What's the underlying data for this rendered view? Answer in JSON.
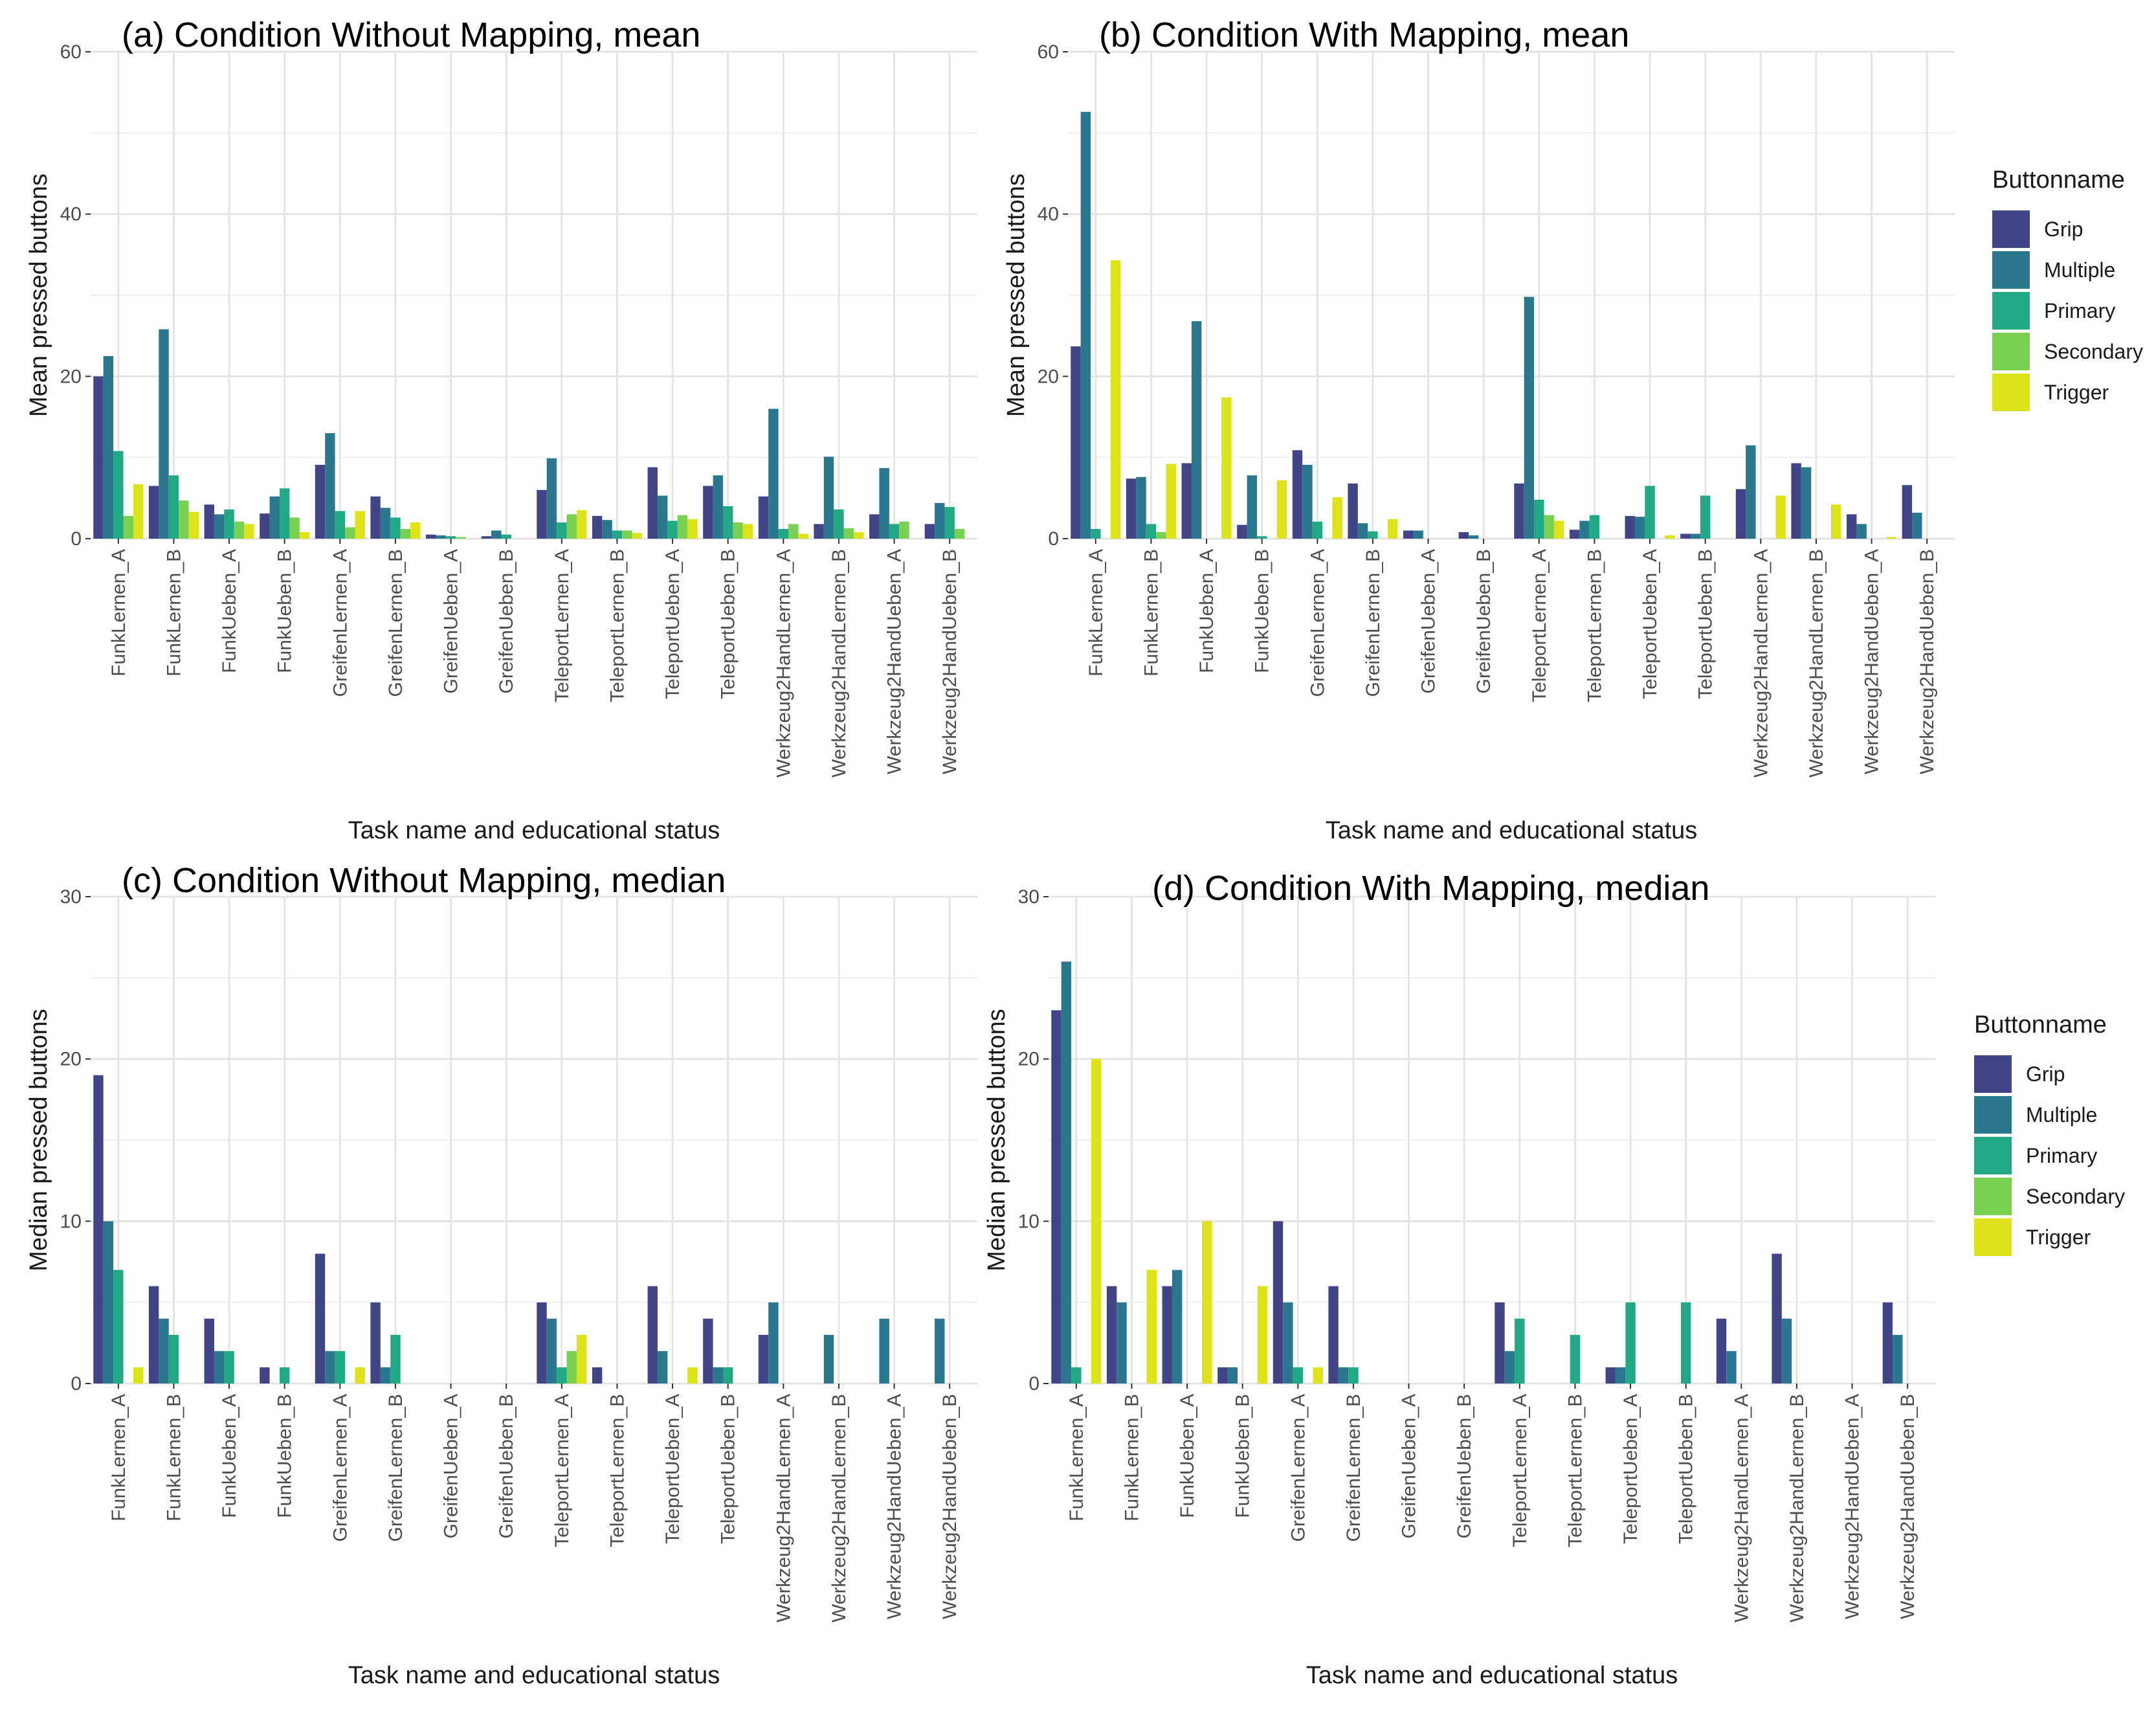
{
  "buttonnames": [
    "Grip",
    "Multiple",
    "Primary",
    "Secondary",
    "Trigger"
  ],
  "colors": {
    "Grip": "#414487",
    "Multiple": "#2A788E",
    "Primary": "#22A884",
    "Secondary": "#7AD151",
    "Trigger": "#DDE318"
  },
  "legend": {
    "title": "Buttonname",
    "items": [
      "Grip",
      "Multiple",
      "Primary",
      "Secondary",
      "Trigger"
    ]
  },
  "chart_data": [
    {
      "type": "bar",
      "title": "(a) Condition Without Mapping, mean",
      "xlabel": "Task name and educational status",
      "ylabel": "Mean pressed buttons",
      "ylim": [
        0,
        60
      ],
      "yticks": [
        0,
        20,
        40,
        60
      ],
      "categories": [
        "FunkLernen_A",
        "FunkLernen_B",
        "FunkUeben_A",
        "FunkUeben_B",
        "GreifenLernen_A",
        "GreifenLernen_B",
        "GreifenUeben_A",
        "GreifenUeben_B",
        "TeleportLernen_A",
        "TeleportLernen_B",
        "TeleportUeben_A",
        "TeleportUeben_B",
        "Werkzeug2HandLernen_A",
        "Werkzeug2HandLernen_B",
        "Werkzeug2HandUeben_A",
        "Werkzeug2HandUeben_B"
      ],
      "series": [
        {
          "name": "Grip",
          "values": [
            20.0,
            6.5,
            4.2,
            3.1,
            9.1,
            5.2,
            0.5,
            0.3,
            6.0,
            2.8,
            8.8,
            6.5,
            5.2,
            1.8,
            3.0,
            1.8
          ]
        },
        {
          "name": "Multiple",
          "values": [
            22.5,
            25.8,
            3.0,
            5.2,
            13.0,
            3.8,
            0.4,
            1.0,
            9.9,
            2.3,
            5.3,
            7.8,
            16.0,
            10.1,
            8.7,
            4.4
          ]
        },
        {
          "name": "Primary",
          "values": [
            10.8,
            7.8,
            3.6,
            6.2,
            3.4,
            2.6,
            0.3,
            0.5,
            2.0,
            1.0,
            2.2,
            4.0,
            1.2,
            3.6,
            1.8,
            3.9
          ]
        },
        {
          "name": "Secondary",
          "values": [
            2.8,
            4.7,
            2.1,
            2.6,
            1.4,
            1.2,
            0.2,
            0.0,
            3.0,
            1.0,
            2.9,
            2.0,
            1.8,
            1.3,
            2.1,
            1.2
          ]
        },
        {
          "name": "Trigger",
          "values": [
            6.7,
            3.3,
            1.8,
            0.8,
            3.4,
            2.0,
            0.0,
            0.0,
            3.5,
            0.7,
            2.4,
            1.8,
            0.6,
            0.8,
            0.0,
            0.0
          ]
        }
      ]
    },
    {
      "type": "bar",
      "title": "(b) Condition With Mapping, mean",
      "xlabel": "Task name and educational status",
      "ylabel": "Mean pressed buttons",
      "ylim": [
        0,
        60
      ],
      "yticks": [
        0,
        20,
        40,
        60
      ],
      "categories": [
        "FunkLernen_A",
        "FunkLernen_B",
        "FunkUeben_A",
        "FunkUeben_B",
        "GreifenLernen_A",
        "GreifenLernen_B",
        "GreifenUeben_A",
        "GreifenUeben_B",
        "TeleportLernen_A",
        "TeleportLernen_B",
        "TeleportUeben_A",
        "TeleportUeben_B",
        "Werkzeug2HandLernen_A",
        "Werkzeug2HandLernen_B",
        "Werkzeug2HandUeben_A",
        "Werkzeug2HandUeben_B"
      ],
      "series": [
        {
          "name": "Grip",
          "values": [
            23.7,
            7.4,
            9.3,
            1.7,
            10.9,
            6.8,
            1.0,
            0.8,
            6.8,
            1.1,
            2.8,
            0.6,
            6.1,
            9.3,
            3.0,
            6.6
          ]
        },
        {
          "name": "Multiple",
          "values": [
            52.6,
            7.6,
            26.8,
            7.8,
            9.1,
            1.9,
            1.0,
            0.4,
            29.8,
            2.2,
            2.7,
            0.6,
            11.5,
            8.8,
            1.8,
            3.2
          ]
        },
        {
          "name": "Primary",
          "values": [
            1.2,
            1.8,
            0.0,
            0.3,
            2.1,
            0.9,
            0.0,
            0.0,
            4.8,
            2.9,
            6.5,
            5.3,
            0.0,
            0.0,
            0.0,
            0.0
          ]
        },
        {
          "name": "Secondary",
          "values": [
            0.0,
            0.8,
            0.0,
            0.0,
            0.0,
            0.0,
            0.0,
            0.0,
            2.9,
            0.0,
            0.0,
            0.0,
            0.0,
            0.0,
            0.0,
            0.0
          ]
        },
        {
          "name": "Trigger",
          "values": [
            34.3,
            9.2,
            17.4,
            7.2,
            5.1,
            2.4,
            0.0,
            0.0,
            2.2,
            0.0,
            0.4,
            0.0,
            5.3,
            4.2,
            0.2,
            0.0
          ]
        }
      ]
    },
    {
      "type": "bar",
      "title": "(c) Condition Without Mapping, median",
      "xlabel": "Task name and educational status",
      "ylabel": "Median pressed buttons",
      "ylim": [
        0,
        30
      ],
      "yticks": [
        0,
        10,
        20,
        30
      ],
      "categories": [
        "FunkLernen_A",
        "FunkLernen_B",
        "FunkUeben_A",
        "FunkUeben_B",
        "GreifenLernen_A",
        "GreifenLernen_B",
        "GreifenUeben_A",
        "GreifenUeben_B",
        "TeleportLernen_A",
        "TeleportLernen_B",
        "TeleportUeben_A",
        "TeleportUeben_B",
        "Werkzeug2HandLernen_A",
        "Werkzeug2HandLernen_B",
        "Werkzeug2HandUeben_A",
        "Werkzeug2HandUeben_B"
      ],
      "series": [
        {
          "name": "Grip",
          "values": [
            19,
            6,
            4,
            1,
            8,
            5,
            0,
            0,
            5,
            1,
            6,
            4,
            3,
            0,
            0,
            0
          ]
        },
        {
          "name": "Multiple",
          "values": [
            10,
            4,
            2,
            0,
            2,
            1,
            0,
            0,
            4,
            0,
            2,
            1,
            5,
            3,
            4,
            4
          ]
        },
        {
          "name": "Primary",
          "values": [
            7,
            3,
            2,
            1,
            2,
            3,
            0,
            0,
            1,
            0,
            0,
            1,
            0,
            0,
            0,
            0
          ]
        },
        {
          "name": "Secondary",
          "values": [
            0,
            0,
            0,
            0,
            0,
            0,
            0,
            0,
            2,
            0,
            0,
            0,
            0,
            0,
            0,
            0
          ]
        },
        {
          "name": "Trigger",
          "values": [
            1,
            0,
            0,
            0,
            1,
            0,
            0,
            0,
            3,
            0,
            1,
            0,
            0,
            0,
            0,
            0
          ]
        }
      ]
    },
    {
      "type": "bar",
      "title": "(d) Condition With Mapping, median",
      "xlabel": "Task name and educational status",
      "ylabel": "Median pressed buttons",
      "ylim": [
        0,
        30
      ],
      "yticks": [
        0,
        10,
        20,
        30
      ],
      "categories": [
        "FunkLernen_A",
        "FunkLernen_B",
        "FunkUeben_A",
        "FunkUeben_B",
        "GreifenLernen_A",
        "GreifenLernen_B",
        "GreifenUeben_A",
        "GreifenUeben_B",
        "TeleportLernen_A",
        "TeleportLernen_B",
        "TeleportUeben_A",
        "TeleportUeben_B",
        "Werkzeug2HandLernen_A",
        "Werkzeug2HandLernen_B",
        "Werkzeug2HandUeben_A",
        "Werkzeug2HandUeben_B"
      ],
      "series": [
        {
          "name": "Grip",
          "values": [
            23,
            6,
            6,
            1,
            10,
            6,
            0,
            0,
            5,
            0,
            1,
            0,
            4,
            8,
            0,
            5
          ]
        },
        {
          "name": "Multiple",
          "values": [
            26,
            5,
            7,
            1,
            5,
            1,
            0,
            0,
            2,
            0,
            1,
            0,
            2,
            4,
            0,
            3
          ]
        },
        {
          "name": "Primary",
          "values": [
            1,
            0,
            0,
            0,
            1,
            1,
            0,
            0,
            4,
            3,
            5,
            5,
            0,
            0,
            0,
            0
          ]
        },
        {
          "name": "Secondary",
          "values": [
            0,
            0,
            0,
            0,
            0,
            0,
            0,
            0,
            0,
            0,
            0,
            0,
            0,
            0,
            0,
            0
          ]
        },
        {
          "name": "Trigger",
          "values": [
            20,
            7,
            10,
            6,
            1,
            0,
            0,
            0,
            0,
            0,
            0,
            0,
            0,
            0,
            0,
            0
          ]
        }
      ]
    }
  ]
}
